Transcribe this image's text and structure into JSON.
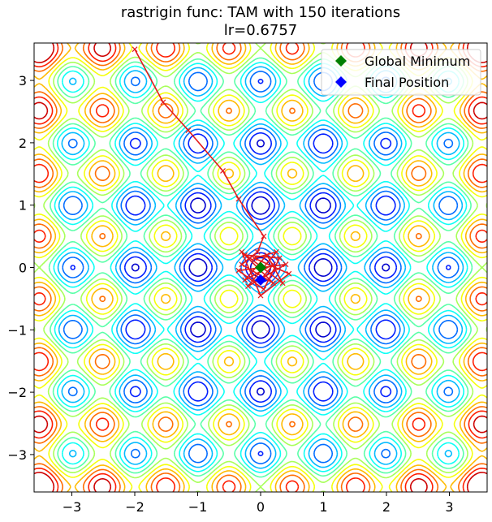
{
  "chart_data": {
    "type": "contour",
    "title": "rastrigin func: TAM with 150 iterations",
    "subtitle": "lr=0.6757",
    "function": "rastrigin",
    "iterations": 150,
    "lr": 0.6757,
    "xlim": [
      -3.6,
      3.6
    ],
    "ylim": [
      -3.6,
      3.6
    ],
    "xticks": [
      -3,
      -2,
      -1,
      0,
      1,
      2,
      3
    ],
    "yticks": [
      -3,
      -2,
      -1,
      0,
      1,
      2,
      3
    ],
    "xtick_labels": [
      "−3",
      "−2",
      "−1",
      "0",
      "1",
      "2",
      "3"
    ],
    "ytick_labels": [
      "−3",
      "−2",
      "−1",
      "0",
      "1",
      "2",
      "3"
    ],
    "grid": false,
    "colormap": "jet",
    "path_color": "#e41a1c",
    "path": [
      [
        -2.0,
        3.5
      ],
      [
        -1.55,
        2.65
      ],
      [
        -1.15,
        2.2
      ],
      [
        -0.6,
        1.55
      ],
      [
        -0.35,
        1.1
      ],
      [
        0.05,
        0.5
      ],
      [
        -0.05,
        0.25
      ],
      [
        -0.3,
        0.05
      ],
      [
        0.2,
        -0.25
      ],
      [
        -0.25,
        0.2
      ],
      [
        0.3,
        0.15
      ],
      [
        0.05,
        -0.35
      ],
      [
        -0.35,
        -0.05
      ],
      [
        0.4,
        0.05
      ],
      [
        -0.2,
        -0.3
      ],
      [
        0.25,
        0.25
      ],
      [
        -0.1,
        0.15
      ],
      [
        0.45,
        -0.1
      ],
      [
        0.0,
        -0.45
      ],
      [
        -0.3,
        0.25
      ],
      [
        0.35,
        -0.25
      ],
      [
        0.1,
        0.2
      ],
      [
        -0.25,
        -0.2
      ],
      [
        0.2,
        0.05
      ],
      [
        0.0,
        -0.2
      ]
    ],
    "markers": [
      {
        "name": "Global Minimum",
        "x": 0,
        "y": 0,
        "color": "#008000",
        "shape": "diamond"
      },
      {
        "name": "Final Position",
        "x": 0.0,
        "y": -0.2,
        "color": "#0000ff",
        "shape": "diamond"
      }
    ],
    "legend": {
      "placement": "top-right",
      "entries": [
        {
          "label": "Global Minimum",
          "color": "#008000"
        },
        {
          "label": "Final Position",
          "color": "#0000ff"
        }
      ]
    }
  }
}
